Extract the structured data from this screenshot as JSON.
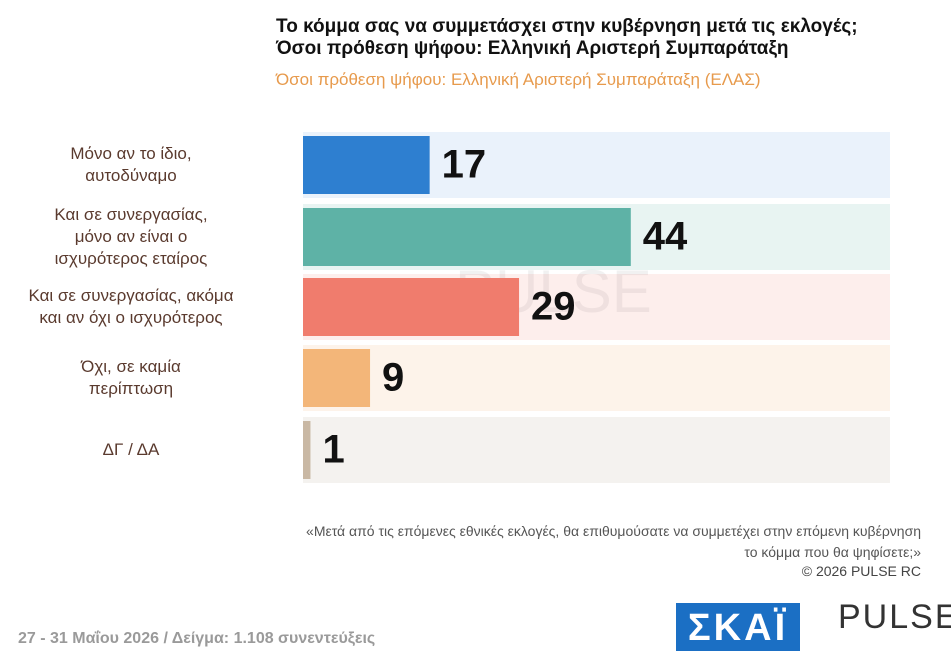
{
  "chart_data": {
    "type": "bar",
    "title": "Το κόμμα σας να συμμετάσχει στην κυβέρνηση μετά τις εκλογές;\nΌσοι πρόθεση ψήφου: Ελληνική Αριστερή Συμπαράταξη",
    "subtitle": "Όσοι πρόθεση ψήφου: Ελληνική Αριστερή Συμπαράταξη (ΕΛΑΣ)",
    "categories": [
      "Μόνο αν το ίδιο,\nαυτοδύναμο",
      "Και σε συνεργασίας,\nμόνο αν είναι ο\nισχυρότερος εταίρος",
      "Και σε συνεργασίας, ακόμα\nκαι αν όχι ο ισχυρότερος",
      "Όχι, σε καμία\nπερίπτωση",
      "ΔΓ / ΔΑ"
    ],
    "values": [
      17,
      44,
      29,
      9,
      1
    ],
    "colors": [
      "#2e7fd0",
      "#5eb2a6",
      "#f07c6d",
      "#f3b679",
      "#c9b8a4"
    ]
  },
  "note": "«Μετά από τις επόμενες εθνικές εκλογές, θα επιθυμούσατε να συμμετέχει στην επόμενη κυβέρνηση\nτο κόμμα που θα ψηφίσετε;»",
  "copyright": "©  2026  PULSE RC",
  "footer": "27 - 31  Μαΐου 2026  /  Δείγμα:  1.108 συνεντεύξεις",
  "logos": {
    "skai": "ΣΚΑΪ",
    "pulse": "PULSE"
  }
}
